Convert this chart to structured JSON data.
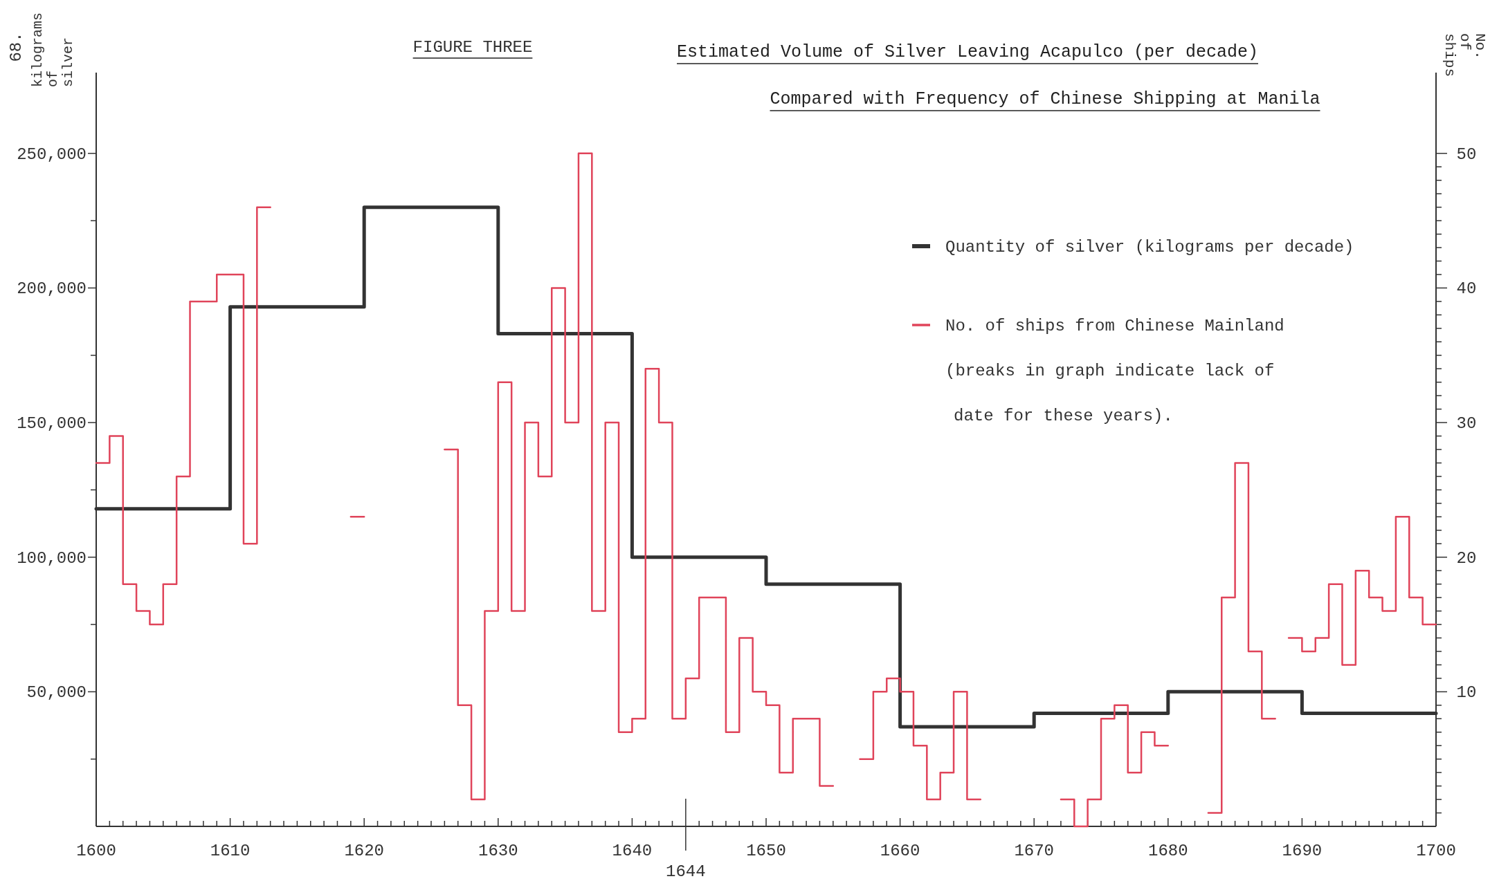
{
  "chart_data": {
    "type": "step",
    "title": "Estimated Volume of Silver Leaving Acapulco (per decade)",
    "subtitle": "Compared with Frequency of Chinese Shipping at Manila",
    "ylabel": "kilograms of silver",
    "y2label": "No. of ships",
    "annotations": [
      "68.",
      "FIGURE THREE",
      "(breaks in graph indicate lack of",
      "date for these years)."
    ],
    "xlim": [
      1600,
      1700
    ],
    "ylim": [
      0,
      280000
    ],
    "y2lim": [
      0,
      56
    ],
    "xticks": [
      1600,
      {
        "value": 1601,
        "label": null
      },
      {
        "value": 1602,
        "label": null
      },
      {
        "value": 1603,
        "label": null
      },
      {
        "value": 1604,
        "label": null
      },
      {
        "value": 1605,
        "label": null
      },
      {
        "value": 1606,
        "label": null
      },
      {
        "value": 1607,
        "label": null
      },
      {
        "value": 1608,
        "label": null
      },
      {
        "value": 1609,
        "label": null
      },
      1610,
      {
        "value": 1611,
        "label": null
      },
      {
        "value": 1612,
        "label": null
      },
      {
        "value": 1613,
        "label": null
      },
      {
        "value": 1614,
        "label": null
      },
      {
        "value": 1615,
        "label": null
      },
      {
        "value": 1616,
        "label": null
      },
      {
        "value": 1617,
        "label": null
      },
      {
        "value": 1618,
        "label": null
      },
      {
        "value": 1619,
        "label": null
      },
      1620,
      {
        "value": 1621,
        "label": null
      },
      {
        "value": 1622,
        "label": null
      },
      {
        "value": 1623,
        "label": null
      },
      {
        "value": 1624,
        "label": null
      },
      {
        "value": 1625,
        "label": null
      },
      {
        "value": 1626,
        "label": null
      },
      {
        "value": 1627,
        "label": null
      },
      {
        "value": 1628,
        "label": null
      },
      {
        "value": 1629,
        "label": null
      },
      1630,
      {
        "value": 1631,
        "label": null
      },
      {
        "value": 1632,
        "label": null
      },
      {
        "value": 1633,
        "label": null
      },
      {
        "value": 1634,
        "label": null
      },
      {
        "value": 1635,
        "label": null
      },
      {
        "value": 1636,
        "label": null
      },
      {
        "value": 1637,
        "label": null
      },
      {
        "value": 1638,
        "label": null
      },
      {
        "value": 1639,
        "label": null
      },
      1640,
      {
        "value": 1641,
        "label": null
      },
      {
        "value": 1642,
        "label": null
      },
      {
        "value": 1643,
        "label": null
      },
      {
        "value": 1645,
        "label": null
      },
      {
        "value": 1646,
        "label": null
      },
      {
        "value": 1647,
        "label": null
      },
      {
        "value": 1648,
        "label": null
      },
      {
        "value": 1649,
        "label": null
      },
      1650,
      {
        "value": 1651,
        "label": null
      },
      {
        "value": 1652,
        "label": null
      },
      {
        "value": 1653,
        "label": null
      },
      {
        "value": 1654,
        "label": null
      },
      {
        "value": 1655,
        "label": null
      },
      {
        "value": 1656,
        "label": null
      },
      {
        "value": 1657,
        "label": null
      },
      {
        "value": 1658,
        "label": null
      },
      {
        "value": 1659,
        "label": null
      },
      1660,
      {
        "value": 1661,
        "label": null
      },
      {
        "value": 1662,
        "label": null
      },
      {
        "value": 1663,
        "label": null
      },
      {
        "value": 1664,
        "label": null
      },
      {
        "value": 1665,
        "label": null
      },
      {
        "value": 1666,
        "label": null
      },
      {
        "value": 1667,
        "label": null
      },
      {
        "value": 1668,
        "label": null
      },
      {
        "value": 1669,
        "label": null
      },
      1670,
      {
        "value": 1671,
        "label": null
      },
      {
        "value": 1672,
        "label": null
      },
      {
        "value": 1673,
        "label": null
      },
      {
        "value": 1674,
        "label": null
      },
      {
        "value": 1675,
        "label": null
      },
      {
        "value": 1676,
        "label": null
      },
      {
        "value": 1677,
        "label": null
      },
      {
        "value": 1678,
        "label": null
      },
      {
        "value": 1679,
        "label": null
      },
      1680,
      {
        "value": 1681,
        "label": null
      },
      {
        "value": 1682,
        "label": null
      },
      {
        "value": 1683,
        "label": null
      },
      {
        "value": 1684,
        "label": null
      },
      {
        "value": 1685,
        "label": null
      },
      {
        "value": 1686,
        "label": null
      },
      {
        "value": 1687,
        "label": null
      },
      {
        "value": 1688,
        "label": null
      },
      {
        "value": 1689,
        "label": null
      },
      1690,
      {
        "value": 1691,
        "label": null
      },
      {
        "value": 1692,
        "label": null
      },
      {
        "value": 1693,
        "label": null
      },
      {
        "value": 1694,
        "label": null
      },
      {
        "value": 1695,
        "label": null
      },
      {
        "value": 1696,
        "label": null
      },
      {
        "value": 1697,
        "label": null
      },
      {
        "value": 1698,
        "label": null
      },
      {
        "value": 1699,
        "label": null
      },
      1700
    ],
    "yticks": [
      {
        "value": 25000,
        "label": null
      },
      {
        "value": 50000,
        "label": "50,000"
      },
      {
        "value": 75000,
        "label": null
      },
      {
        "value": 100000,
        "label": "100,000"
      },
      {
        "value": 125000,
        "label": null
      },
      {
        "value": 150000,
        "label": "150,000"
      },
      {
        "value": 175000,
        "label": null
      },
      {
        "value": 200000,
        "label": "200,000"
      },
      {
        "value": 225000,
        "label": null
      },
      {
        "value": 250000,
        "label": "250,000"
      }
    ],
    "y2ticks": [
      {
        "value": 1,
        "label": null
      },
      {
        "value": 2,
        "label": null
      },
      {
        "value": 3,
        "label": null
      },
      {
        "value": 4,
        "label": null
      },
      {
        "value": 5,
        "label": null
      },
      {
        "value": 6,
        "label": null
      },
      {
        "value": 7,
        "label": null
      },
      {
        "value": 8,
        "label": null
      },
      {
        "value": 9,
        "label": null
      },
      10,
      {
        "value": 11,
        "label": null
      },
      {
        "value": 12,
        "label": null
      },
      {
        "value": 13,
        "label": null
      },
      {
        "value": 14,
        "label": null
      },
      {
        "value": 15,
        "label": null
      },
      {
        "value": 16,
        "label": null
      },
      {
        "value": 17,
        "label": null
      },
      {
        "value": 18,
        "label": null
      },
      {
        "value": 19,
        "label": null
      },
      20,
      {
        "value": 21,
        "label": null
      },
      {
        "value": 22,
        "label": null
      },
      {
        "value": 23,
        "label": null
      },
      {
        "value": 24,
        "label": null
      },
      {
        "value": 25,
        "label": null
      },
      {
        "value": 26,
        "label": null
      },
      {
        "value": 27,
        "label": null
      },
      {
        "value": 28,
        "label": null
      },
      {
        "value": 29,
        "label": null
      },
      30,
      {
        "value": 31,
        "label": null
      },
      {
        "value": 32,
        "label": null
      },
      {
        "value": 33,
        "label": null
      },
      {
        "value": 34,
        "label": null
      },
      {
        "value": 35,
        "label": null
      },
      {
        "value": 36,
        "label": null
      },
      {
        "value": 37,
        "label": null
      },
      {
        "value": 38,
        "label": null
      },
      {
        "value": 39,
        "label": null
      },
      40,
      {
        "value": 41,
        "label": null
      },
      {
        "value": 42,
        "label": null
      },
      {
        "value": 43,
        "label": null
      },
      {
        "value": 44,
        "label": null
      },
      {
        "value": 45,
        "label": null
      },
      {
        "value": 46,
        "label": null
      },
      {
        "value": 47,
        "label": null
      },
      {
        "value": 48,
        "label": null
      },
      {
        "value": 49,
        "label": null
      },
      50
    ],
    "ref_lines": [
      {
        "axis": "x",
        "value": 1644,
        "label": "1644"
      }
    ],
    "legend": "top right",
    "grid": false,
    "marker": "none",
    "series": [
      {
        "name": "Quantity of silver (kilograms per decade)",
        "color": "#333333",
        "x": [
          1600,
          1610,
          1620,
          1630,
          1640,
          1650,
          1660,
          1670,
          1680,
          1690,
          1700
        ],
        "values": [
          118000,
          193000,
          230000,
          183000,
          100000,
          90000,
          37000,
          42000,
          50000,
          42000,
          42000
        ]
      },
      {
        "name": "No. of ships from Chinese Mainland",
        "color": "#e0445a",
        "axis": "y2",
        "x": [
          1600,
          1601,
          1602,
          1603,
          1604,
          1605,
          1606,
          1607,
          1608,
          1609,
          1610,
          1611,
          1612,
          1613,
          1619,
          1620,
          1626,
          1627,
          1628,
          1629,
          1630,
          1631,
          1632,
          1633,
          1634,
          1635,
          1636,
          1637,
          1638,
          1639,
          1640,
          1641,
          1642,
          1643,
          1644,
          1645,
          1646,
          1647,
          1648,
          1649,
          1650,
          1651,
          1652,
          1653,
          1654,
          1655,
          1657,
          1658,
          1659,
          1660,
          1661,
          1662,
          1663,
          1664,
          1665,
          1666,
          1672,
          1673,
          1674,
          1675,
          1676,
          1677,
          1678,
          1679,
          1680,
          1683,
          1684,
          1685,
          1686,
          1687,
          1688,
          1689,
          1690,
          1691,
          1692,
          1693,
          1694,
          1695,
          1696,
          1697,
          1698,
          1699,
          1700
        ],
        "values": [
          27,
          29,
          18,
          16,
          15,
          18,
          26,
          39,
          39,
          41,
          41,
          21,
          46,
          null,
          23,
          null,
          28,
          9,
          2,
          16,
          33,
          16,
          30,
          26,
          40,
          30,
          50,
          16,
          30,
          7,
          8,
          34,
          30,
          8,
          11,
          17,
          17,
          7,
          14,
          10,
          9,
          4,
          8,
          8,
          3,
          null,
          5,
          10,
          11,
          10,
          6,
          2,
          4,
          10,
          2,
          null,
          2,
          0,
          2,
          8,
          9,
          4,
          7,
          6,
          null,
          1,
          17,
          27,
          13,
          8,
          null,
          14,
          13,
          14,
          18,
          12,
          19,
          17,
          16,
          23,
          17,
          15,
          15
        ]
      }
    ]
  }
}
